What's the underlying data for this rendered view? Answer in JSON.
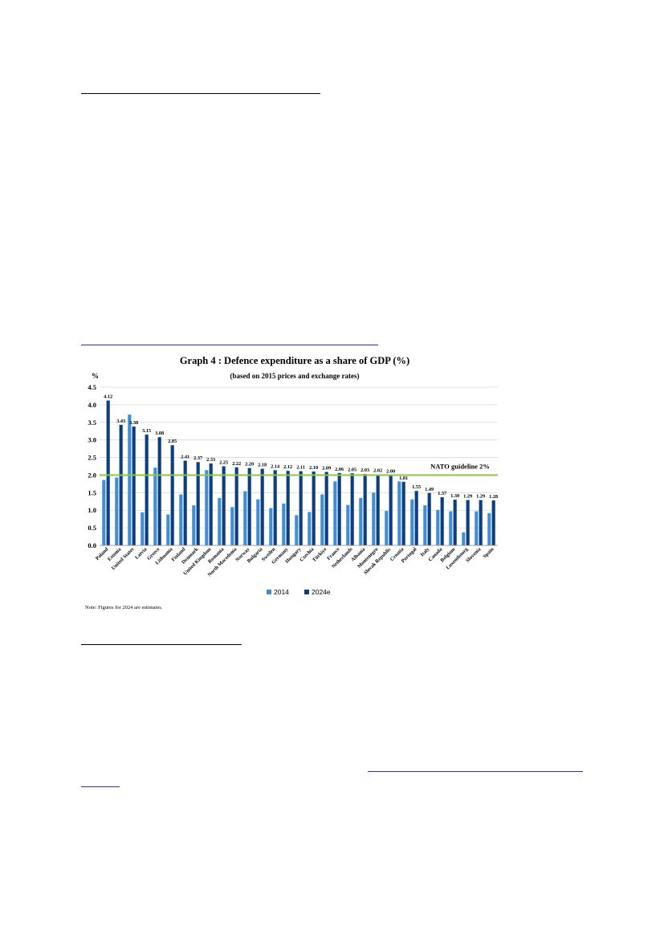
{
  "page": {
    "note": "Note: Figures for 2024 are estimates."
  },
  "chart_data": {
    "type": "bar",
    "title": "Graph 4 : Defence expenditure as a share of GDP (%)",
    "subtitle": "(based on 2015 prices and exchange rates)",
    "ylabel": "%",
    "ylim": [
      0,
      4.5
    ],
    "yticks": [
      "0.0",
      "0.5",
      "1.0",
      "1.5",
      "2.0",
      "2.5",
      "3.0",
      "3.5",
      "4.0",
      "4.5"
    ],
    "grid": true,
    "legend_position": "bottom",
    "categories": [
      "Poland",
      "Estonia",
      "United States",
      "Latvia",
      "Greece",
      "Lithuania",
      "Finland",
      "Denmark",
      "United Kingdom",
      "Romania",
      "North Macedonia",
      "Norway",
      "Bulgaria",
      "Sweden",
      "Germany",
      "Hungary",
      "Czechia",
      "Türkiye",
      "France",
      "Netherlands",
      "Albania",
      "Montenegro",
      "Slovak Republic",
      "Croatia",
      "Portugal",
      "Italy",
      "Canada",
      "Belgium",
      "Luxembourg",
      "Slovenia",
      "Spain"
    ],
    "series": [
      {
        "name": "2014",
        "color": "#3f8fd6",
        "values": [
          1.86,
          1.93,
          3.72,
          0.94,
          2.21,
          0.88,
          1.45,
          1.14,
          2.14,
          1.35,
          1.09,
          1.54,
          1.31,
          1.06,
          1.19,
          0.86,
          0.95,
          1.45,
          1.82,
          1.15,
          1.35,
          1.5,
          0.98,
          1.82,
          1.31,
          1.14,
          1.01,
          0.97,
          0.37,
          0.97,
          0.92
        ]
      },
      {
        "name": "2024e",
        "color": "#0d3e7e",
        "values": [
          4.12,
          3.43,
          3.38,
          3.15,
          3.08,
          2.85,
          2.41,
          2.37,
          2.33,
          2.25,
          2.22,
          2.2,
          2.18,
          2.14,
          2.12,
          2.11,
          2.1,
          2.09,
          2.06,
          2.05,
          2.03,
          2.02,
          2.0,
          1.81,
          1.55,
          1.49,
          1.37,
          1.3,
          1.29,
          1.29,
          1.28
        ],
        "labels": [
          "4.12",
          "3.43",
          "3.38",
          "3.15",
          "3.08",
          "2.85",
          "2.41",
          "2.37",
          "2.33",
          "2.25",
          "2.22",
          "2.20",
          "2.18",
          "2.14",
          "2.12",
          "2.11",
          "2.10",
          "2.09",
          "2.06",
          "2.05",
          "2.03",
          "2.02",
          "2.00",
          "1.81",
          "1.55",
          "1.49",
          "1.37",
          "1.30",
          "1.29",
          "1.29",
          "1.28"
        ]
      }
    ],
    "reference_line": {
      "value": 2.0,
      "label": "NATO guideline 2%",
      "color": "#8cc63f"
    }
  }
}
